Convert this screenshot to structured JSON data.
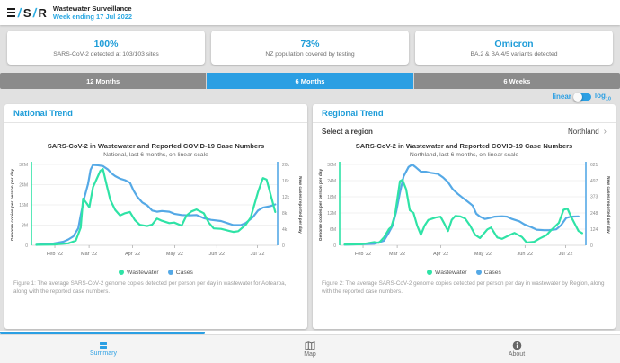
{
  "header": {
    "app_title": "Wastewater Surveillance",
    "week_ending": "Week ending 17 Jul 2022",
    "logo": {
      "slash1": "/",
      "s": "S",
      "slash2": "/",
      "r": "R"
    }
  },
  "stats": [
    {
      "value": "100%",
      "label": "SARS-CoV-2 detected at 103/103 sites"
    },
    {
      "value": "73%",
      "label": "NZ population covered by testing"
    },
    {
      "value": "Omicron",
      "label": "BA.2 & BA.4/5 variants detected"
    }
  ],
  "tabs": [
    {
      "label": "12 Months",
      "selected": false
    },
    {
      "label": "6 Months",
      "selected": true
    },
    {
      "label": "6 Weeks",
      "selected": false
    }
  ],
  "scale_toggle": {
    "linear_label": "linear",
    "log_label": "log",
    "log_base": "10",
    "state": "linear"
  },
  "icons": {
    "chevron_right": "›"
  },
  "panels": {
    "national": {
      "title": "National Trend",
      "figure_caption": "Figure 1: The average SARS-CoV-2 genome copies detected per person per day in wastewater for Aotearoa, along with the reported case numbers."
    },
    "regional": {
      "title": "Regional Trend",
      "select_label": "Select a region",
      "selected_region": "Northland",
      "figure_caption": "Figure 2: The average SARS-CoV-2 genome copies detected per person per day in wastewater by Region, along with the reported case numbers."
    }
  },
  "legend": [
    {
      "label": "Wastewater",
      "color": "#2fe3a6"
    },
    {
      "label": "Cases",
      "color": "#55a9e6"
    }
  ],
  "nav": [
    {
      "label": "Summary",
      "active": true
    },
    {
      "label": "Map",
      "active": false
    },
    {
      "label": "About",
      "active": false
    }
  ],
  "chart_data": [
    {
      "type": "line",
      "title": "SARS-CoV-2 in Wastewater and Reported COVID-19 Case Numbers",
      "subtitle": "National, last 6 months, on linear scale",
      "x_tick_labels": [
        "Feb '22",
        "Mar '22",
        "Apr '22",
        "May '22",
        "Jun '22",
        "Jul '22"
      ],
      "x_tick_pos": [
        0.095,
        0.234,
        0.411,
        0.582,
        0.753,
        0.918
      ],
      "left_axis": {
        "label": "Genome copies per person per day",
        "ticks": [
          "0",
          "8M",
          "16M",
          "24M",
          "32M"
        ],
        "tick_values": [
          0,
          8,
          16,
          24,
          32
        ],
        "max": 32,
        "unit": "million genome copies"
      },
      "right_axis": {
        "label": "New cases reported per day",
        "ticks": [
          "0",
          "4k",
          "8k",
          "12k",
          "16k",
          "20k"
        ],
        "tick_values": [
          0,
          4,
          8,
          12,
          16,
          20
        ],
        "max": 20,
        "unit": "thousand cases"
      },
      "legend_position": "bottom",
      "series": [
        {
          "name": "Wastewater",
          "axis": "left",
          "color": "#2fe3a6",
          "points": [
            [
              0.02,
              0.2
            ],
            [
              0.09,
              0.3
            ],
            [
              0.15,
              0.8
            ],
            [
              0.18,
              1.8
            ],
            [
              0.2,
              7
            ],
            [
              0.21,
              18.5
            ],
            [
              0.225,
              16.5
            ],
            [
              0.235,
              15
            ],
            [
              0.25,
              23
            ],
            [
              0.28,
              29.5
            ],
            [
              0.29,
              30.2
            ],
            [
              0.305,
              24
            ],
            [
              0.32,
              18
            ],
            [
              0.34,
              14
            ],
            [
              0.36,
              11.8
            ],
            [
              0.38,
              12.7
            ],
            [
              0.4,
              13.2
            ],
            [
              0.42,
              10
            ],
            [
              0.44,
              8.1
            ],
            [
              0.47,
              7.6
            ],
            [
              0.49,
              8.2
            ],
            [
              0.51,
              10.6
            ],
            [
              0.53,
              9.7
            ],
            [
              0.56,
              8.8
            ],
            [
              0.58,
              9
            ],
            [
              0.61,
              7.8
            ],
            [
              0.63,
              11.8
            ],
            [
              0.65,
              13.4
            ],
            [
              0.67,
              14.2
            ],
            [
              0.7,
              12.7
            ],
            [
              0.72,
              9
            ],
            [
              0.74,
              6.7
            ],
            [
              0.77,
              6.5
            ],
            [
              0.79,
              6
            ],
            [
              0.82,
              5.3
            ],
            [
              0.84,
              5.6
            ],
            [
              0.87,
              8.1
            ],
            [
              0.89,
              10.9
            ],
            [
              0.92,
              21
            ],
            [
              0.94,
              26.6
            ],
            [
              0.955,
              26
            ],
            [
              0.97,
              20.6
            ],
            [
              0.99,
              13.2
            ]
          ]
        },
        {
          "name": "Cases",
          "axis": "right",
          "color": "#55a9e6",
          "points": [
            [
              0.02,
              0.1
            ],
            [
              0.09,
              0.45
            ],
            [
              0.13,
              0.9
            ],
            [
              0.15,
              1.45
            ],
            [
              0.17,
              2.2
            ],
            [
              0.19,
              4.2
            ],
            [
              0.2,
              7.4
            ],
            [
              0.215,
              11.8
            ],
            [
              0.23,
              15.2
            ],
            [
              0.24,
              18.7
            ],
            [
              0.25,
              19.9
            ],
            [
              0.27,
              19.8
            ],
            [
              0.29,
              19.6
            ],
            [
              0.31,
              18.8
            ],
            [
              0.325,
              17.8
            ],
            [
              0.34,
              17.1
            ],
            [
              0.36,
              16.5
            ],
            [
              0.38,
              16.1
            ],
            [
              0.4,
              15.5
            ],
            [
              0.415,
              13.5
            ],
            [
              0.43,
              12
            ],
            [
              0.45,
              10.6
            ],
            [
              0.47,
              9.9
            ],
            [
              0.49,
              8.6
            ],
            [
              0.51,
              8.3
            ],
            [
              0.53,
              8.5
            ],
            [
              0.56,
              8.3
            ],
            [
              0.58,
              7.8
            ],
            [
              0.61,
              7.5
            ],
            [
              0.64,
              7.4
            ],
            [
              0.67,
              7.5
            ],
            [
              0.7,
              6.7
            ],
            [
              0.73,
              6.3
            ],
            [
              0.77,
              6
            ],
            [
              0.8,
              5.4
            ],
            [
              0.82,
              5
            ],
            [
              0.85,
              5
            ],
            [
              0.87,
              5.5
            ],
            [
              0.9,
              7
            ],
            [
              0.92,
              8.6
            ],
            [
              0.94,
              9.3
            ],
            [
              0.97,
              9.7
            ],
            [
              0.99,
              10.1
            ]
          ]
        }
      ]
    },
    {
      "type": "line",
      "title": "SARS-CoV-2 in Wastewater and Reported COVID-19 Case Numbers",
      "subtitle": "Northland, last 6 months, on linear scale",
      "x_tick_labels": [
        "Feb '22",
        "Mar '22",
        "Apr '22",
        "May '22",
        "Jun '22",
        "Jul '22"
      ],
      "x_tick_pos": [
        0.095,
        0.234,
        0.411,
        0.582,
        0.753,
        0.918
      ],
      "left_axis": {
        "label": "Genome copies per person per day",
        "ticks": [
          "0",
          "6M",
          "12M",
          "18M",
          "24M",
          "30M"
        ],
        "tick_values": [
          0,
          6,
          12,
          18,
          24,
          30
        ],
        "max": 30,
        "unit": "million genome copies"
      },
      "right_axis": {
        "label": "New cases reported per day",
        "ticks": [
          "0",
          "124",
          "248",
          "373",
          "497",
          "621"
        ],
        "tick_values": [
          0,
          124,
          248,
          373,
          497,
          621
        ],
        "max": 621,
        "unit": "cases"
      },
      "legend_position": "bottom",
      "series": [
        {
          "name": "Wastewater",
          "axis": "left",
          "color": "#2fe3a6",
          "points": [
            [
              0.02,
              0.3
            ],
            [
              0.09,
              0.4
            ],
            [
              0.14,
              1.2
            ],
            [
              0.16,
              0.9
            ],
            [
              0.18,
              2.9
            ],
            [
              0.2,
              6
            ],
            [
              0.21,
              6.8
            ],
            [
              0.225,
              11.5
            ],
            [
              0.245,
              23.8
            ],
            [
              0.255,
              24.3
            ],
            [
              0.27,
              20.8
            ],
            [
              0.285,
              13
            ],
            [
              0.3,
              12
            ],
            [
              0.315,
              7.3
            ],
            [
              0.33,
              3.9
            ],
            [
              0.345,
              7.3
            ],
            [
              0.36,
              9.4
            ],
            [
              0.39,
              10.3
            ],
            [
              0.41,
              10.6
            ],
            [
              0.425,
              8.1
            ],
            [
              0.44,
              5.3
            ],
            [
              0.455,
              9.4
            ],
            [
              0.47,
              10.9
            ],
            [
              0.49,
              10.7
            ],
            [
              0.51,
              9.9
            ],
            [
              0.53,
              7.3
            ],
            [
              0.55,
              3.9
            ],
            [
              0.57,
              2.7
            ],
            [
              0.6,
              5.9
            ],
            [
              0.615,
              6.6
            ],
            [
              0.64,
              2.9
            ],
            [
              0.66,
              2.4
            ],
            [
              0.69,
              3.8
            ],
            [
              0.71,
              4.6
            ],
            [
              0.74,
              3.1
            ],
            [
              0.76,
              1
            ],
            [
              0.79,
              1.3
            ],
            [
              0.81,
              2.4
            ],
            [
              0.84,
              3.8
            ],
            [
              0.86,
              5.7
            ],
            [
              0.89,
              8.3
            ],
            [
              0.91,
              13.2
            ],
            [
              0.925,
              13.6
            ],
            [
              0.94,
              10.6
            ],
            [
              0.97,
              5.3
            ],
            [
              0.985,
              4.5
            ]
          ]
        },
        {
          "name": "Cases",
          "axis": "right",
          "color": "#55a9e6",
          "points": [
            [
              0.02,
              5
            ],
            [
              0.09,
              8
            ],
            [
              0.14,
              12
            ],
            [
              0.18,
              35
            ],
            [
              0.2,
              98
            ],
            [
              0.215,
              152
            ],
            [
              0.23,
              260
            ],
            [
              0.245,
              405
            ],
            [
              0.26,
              530
            ],
            [
              0.28,
              602
            ],
            [
              0.295,
              620
            ],
            [
              0.31,
              598
            ],
            [
              0.33,
              565
            ],
            [
              0.35,
              565
            ],
            [
              0.37,
              557
            ],
            [
              0.4,
              548
            ],
            [
              0.42,
              521
            ],
            [
              0.44,
              485
            ],
            [
              0.46,
              430
            ],
            [
              0.48,
              395
            ],
            [
              0.5,
              364
            ],
            [
              0.52,
              335
            ],
            [
              0.54,
              305
            ],
            [
              0.555,
              242
            ],
            [
              0.57,
              220
            ],
            [
              0.59,
              202
            ],
            [
              0.61,
              210
            ],
            [
              0.63,
              220
            ],
            [
              0.66,
              223
            ],
            [
              0.68,
              220
            ],
            [
              0.7,
              202
            ],
            [
              0.73,
              184
            ],
            [
              0.75,
              161
            ],
            [
              0.78,
              138
            ],
            [
              0.8,
              120
            ],
            [
              0.83,
              116
            ],
            [
              0.85,
              116
            ],
            [
              0.88,
              123
            ],
            [
              0.9,
              156
            ],
            [
              0.92,
              210
            ],
            [
              0.94,
              220
            ],
            [
              0.97,
              222
            ]
          ]
        }
      ]
    }
  ]
}
